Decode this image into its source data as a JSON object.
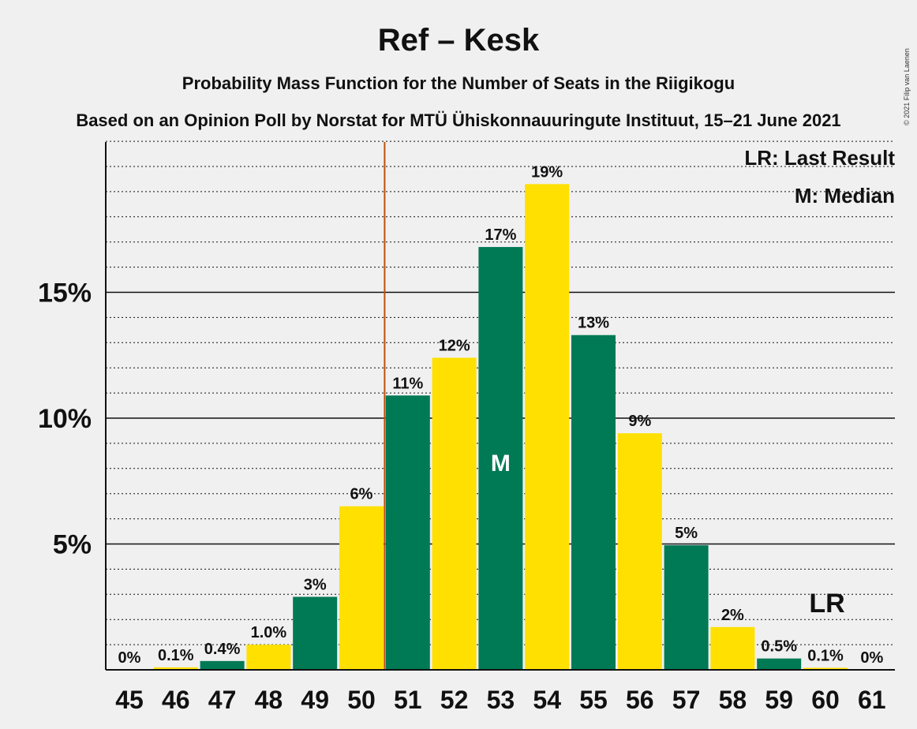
{
  "title": "Ref – Kesk",
  "subtitle": "Probability Mass Function for the Number of Seats in the Riigikogu",
  "subtitle2": "Based on an Opinion Poll by Norstat for MTÜ Ühiskonnauuringute Instituut, 15–21 June 2021",
  "legend": {
    "last_result": "LR: Last Result",
    "median": "M: Median"
  },
  "copyright": "© 2021 Filip van Laenen",
  "colors": {
    "green": "#007955",
    "yellow": "#ffe000",
    "last_result_line": "#c0500a",
    "background": "#f0f0f0"
  },
  "chart_data": {
    "type": "bar",
    "categories": [
      "45",
      "46",
      "47",
      "48",
      "49",
      "50",
      "51",
      "52",
      "53",
      "54",
      "55",
      "56",
      "57",
      "58",
      "59",
      "60",
      "61"
    ],
    "values": [
      0,
      0.1,
      0.35,
      1.0,
      2.9,
      6.5,
      10.9,
      12.4,
      16.8,
      19.3,
      13.3,
      9.4,
      4.95,
      1.7,
      0.45,
      0.08,
      0
    ],
    "data_labels": [
      "0%",
      "0.1%",
      "0.4%",
      "1.0%",
      "3%",
      "6%",
      "11%",
      "12%",
      "17%",
      "19%",
      "13%",
      "9%",
      "5%",
      "2%",
      "0.5%",
      "0.1%",
      "0%"
    ],
    "ylim": [
      0,
      21
    ],
    "yticks": [
      5,
      10,
      15
    ],
    "ytick_labels": [
      "5%",
      "10%",
      "15%"
    ],
    "minor_grid_step": 1,
    "median_category": "53",
    "median_label": "M",
    "last_result_category": "60",
    "last_result_label": "LR",
    "threshold_after_category": "50",
    "bar_colors": "alternating green, yellow"
  }
}
